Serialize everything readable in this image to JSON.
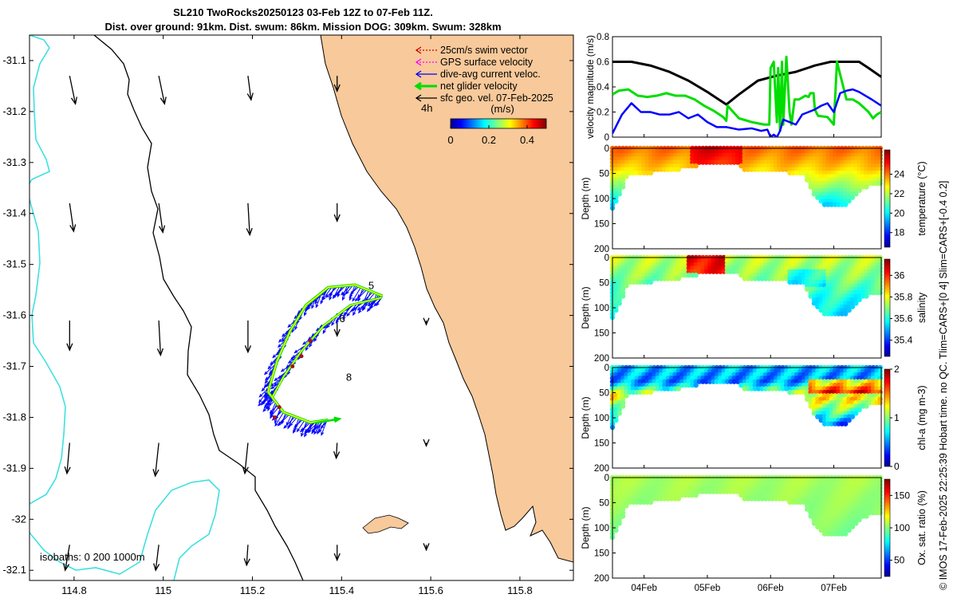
{
  "title_line1": "SL210 TwoRocks20250123 03-Feb 12Z to 07-Feb 11Z.",
  "title_line2": "Dist. over ground: 91km. Dist. swum: 86km. Mission DOG: 309km. Swum: 328km",
  "credit": "© IMOS 17-Feb-2025 22:25:39 Hobart time. no QC. Tlim=CARS+[0 4] Slim=CARS+[-0.4 0.2]",
  "colors": {
    "land": "#f8c99a",
    "coast": "#000000",
    "isobath": "#40e0e0",
    "glider_path": "#ffff00",
    "net": "#00dd00",
    "current": "#0000ff",
    "surface_current": "#000000",
    "swim": "#cc0000",
    "gps": "#ff00ff"
  },
  "map": {
    "xlim": [
      114.7,
      115.92
    ],
    "ylim": [
      -32.12,
      -31.05
    ],
    "lon_ticks": [
      114.8,
      115,
      115.2,
      115.4,
      115.6,
      115.8
    ],
    "lon_tick_labels": [
      "114.8",
      "115",
      "115.2",
      "115.4",
      "115.6",
      "115.8"
    ],
    "lat_ticks": [
      -31.1,
      -31.2,
      -31.3,
      -31.4,
      -31.5,
      -31.6,
      -31.7,
      -31.8,
      -31.9,
      -32,
      -32.1
    ],
    "lat_tick_labels": [
      "-31.1",
      "-31.2",
      "-31.3",
      "-31.4",
      "-31.5",
      "-31.6",
      "-31.7",
      "-31.8",
      "-31.9",
      "-32",
      "-32.1"
    ],
    "legend": [
      {
        "label": "25cm/s swim vector",
        "color": "#cc0000",
        "style": "dashed"
      },
      {
        "label": "GPS surface velocity",
        "color": "#ff00ff",
        "style": "dashed"
      },
      {
        "label": "dive-avg current veloc.",
        "color": "#0000ff",
        "style": "solid"
      },
      {
        "label": "net glider velocity",
        "color": "#00dd00",
        "style": "thick"
      },
      {
        "label": "sfc geo. vel. 07-Feb-2025",
        "color": "#000000",
        "style": "solid"
      }
    ],
    "legend_extra": "4h",
    "colorbar": {
      "title": "(m/s)",
      "ticks": [
        0,
        0.2,
        0.4
      ],
      "tick_labels": [
        "0",
        "0.2",
        "0.4"
      ],
      "range": [
        0,
        0.5
      ]
    },
    "day_labels": [
      {
        "text": "5",
        "lon": 115.46,
        "lat": -31.548
      },
      {
        "text": "6",
        "lon": 115.395,
        "lat": -31.613
      },
      {
        "text": "8",
        "lon": 115.41,
        "lat": -31.728
      }
    ],
    "isobath_label": "isobaths: 0   200  1000m",
    "sfc_vectors": [
      {
        "lon": 114.8,
        "lat": -31.18,
        "u": 0.013,
        "v": -0.055
      },
      {
        "lon": 115.0,
        "lat": -31.18,
        "u": 0.013,
        "v": -0.055
      },
      {
        "lon": 115.2,
        "lat": -31.18,
        "u": 0.007,
        "v": -0.047
      },
      {
        "lon": 115.4,
        "lat": -31.18,
        "u": 0.0,
        "v": -0.03
      },
      {
        "lon": 114.8,
        "lat": -31.43,
        "u": 0.009,
        "v": -0.055
      },
      {
        "lon": 115.0,
        "lat": -31.43,
        "u": 0.009,
        "v": -0.057
      },
      {
        "lon": 115.2,
        "lat": -31.43,
        "u": 0.004,
        "v": -0.062
      },
      {
        "lon": 115.4,
        "lat": -31.43,
        "u": 0.0,
        "v": -0.035
      },
      {
        "lon": 114.8,
        "lat": -31.66,
        "u": 0.0,
        "v": -0.058
      },
      {
        "lon": 115.0,
        "lat": -31.66,
        "u": 0.004,
        "v": -0.068
      },
      {
        "lon": 115.2,
        "lat": -31.66,
        "u": 0.0,
        "v": -0.062
      },
      {
        "lon": 115.4,
        "lat": -31.66,
        "u": 0.0,
        "v": -0.03
      },
      {
        "lon": 115.6,
        "lat": -31.66,
        "u": 0.0,
        "v": -0.008
      },
      {
        "lon": 114.8,
        "lat": -31.9,
        "u": -0.006,
        "v": -0.06
      },
      {
        "lon": 115.0,
        "lat": -31.9,
        "u": -0.008,
        "v": -0.065
      },
      {
        "lon": 115.2,
        "lat": -31.9,
        "u": -0.007,
        "v": -0.06
      },
      {
        "lon": 115.4,
        "lat": -31.9,
        "u": -0.002,
        "v": -0.03
      },
      {
        "lon": 115.6,
        "lat": -31.9,
        "u": 0.0,
        "v": -0.006
      },
      {
        "lon": 114.8,
        "lat": -32.1,
        "u": -0.01,
        "v": -0.05
      },
      {
        "lon": 115.0,
        "lat": -32.1,
        "u": -0.007,
        "v": -0.05
      },
      {
        "lon": 115.2,
        "lat": -32.1,
        "u": -0.003,
        "v": -0.04
      },
      {
        "lon": 115.4,
        "lat": -32.1,
        "u": 0.0,
        "v": -0.03
      },
      {
        "lon": 115.6,
        "lat": -32.1,
        "u": 0.0,
        "v": -0.01
      }
    ],
    "glider_track": [
      [
        115.492,
        -31.562
      ],
      [
        115.43,
        -31.54
      ],
      [
        115.37,
        -31.545
      ],
      [
        115.32,
        -31.58
      ],
      [
        115.285,
        -31.63
      ],
      [
        115.255,
        -31.69
      ],
      [
        115.235,
        -31.75
      ],
      [
        115.27,
        -31.79
      ],
      [
        115.33,
        -31.81
      ],
      [
        115.37,
        -31.805
      ]
    ],
    "glider_track_inner": [
      [
        115.49,
        -31.565
      ],
      [
        115.42,
        -31.58
      ],
      [
        115.36,
        -31.62
      ],
      [
        115.31,
        -31.67
      ],
      [
        115.27,
        -31.72
      ],
      [
        115.245,
        -31.76
      ]
    ]
  },
  "chart_data": [
    {
      "type": "line",
      "title": "velocity magnitude",
      "xlabel": "",
      "ylabel": "velocity magnitude (m/s)",
      "xlim": [
        3.5,
        7.75
      ],
      "ylim": [
        0,
        0.8
      ],
      "yticks": [
        0,
        0.2,
        0.4,
        0.6,
        0.8
      ],
      "ytick_labels": [
        "0",
        "0.2",
        "0.4",
        "0.6",
        "0.8"
      ],
      "xticks": [
        4,
        5,
        6,
        7
      ],
      "xtick_labels": [
        "04Feb",
        "05Feb",
        "06Feb",
        "07Feb"
      ],
      "series": [
        {
          "name": "sfc geo. speed",
          "color": "#000000",
          "width": 3,
          "x": [
            3.5,
            3.8,
            4.1,
            4.4,
            4.7,
            5.0,
            5.3,
            5.5,
            5.8,
            6.1,
            6.4,
            6.7,
            6.95,
            7.2,
            7.4,
            7.55,
            7.75
          ],
          "y": [
            0.6,
            0.6,
            0.57,
            0.52,
            0.45,
            0.36,
            0.26,
            0.34,
            0.45,
            0.49,
            0.52,
            0.57,
            0.6,
            0.6,
            0.6,
            0.55,
            0.48
          ]
        },
        {
          "name": "net glider velocity",
          "color": "#00dd00",
          "width": 3,
          "x": [
            3.5,
            3.6,
            3.75,
            3.9,
            4.05,
            4.2,
            4.35,
            4.5,
            4.65,
            4.8,
            4.95,
            5.1,
            5.25,
            5.3,
            5.32,
            5.5,
            5.7,
            5.9,
            5.98,
            6.0,
            6.05,
            6.1,
            6.12,
            6.15,
            6.18,
            6.2,
            6.25,
            6.3,
            6.33,
            6.38,
            6.45,
            6.55,
            6.6,
            6.63,
            6.68,
            6.7,
            6.75,
            6.9,
            7.0,
            7.05,
            7.1,
            7.2,
            7.3,
            7.4,
            7.55,
            7.62,
            7.68,
            7.75
          ],
          "y": [
            0.34,
            0.37,
            0.38,
            0.33,
            0.32,
            0.33,
            0.35,
            0.33,
            0.33,
            0.3,
            0.25,
            0.21,
            0.16,
            0.13,
            0.25,
            0.15,
            0.12,
            0.1,
            0.1,
            0.55,
            0.6,
            0.12,
            0.55,
            0.05,
            0.6,
            0.1,
            0.64,
            0.2,
            0.1,
            0.3,
            0.3,
            0.33,
            0.32,
            0.35,
            0.35,
            0.22,
            0.17,
            0.16,
            0.1,
            0.6,
            0.5,
            0.3,
            0.3,
            0.27,
            0.2,
            0.15,
            0.18,
            0.2
          ]
        },
        {
          "name": "dive-avg current",
          "color": "#0000ff",
          "width": 2.5,
          "x": [
            3.5,
            3.65,
            3.8,
            3.95,
            4.1,
            4.25,
            4.4,
            4.55,
            4.7,
            4.85,
            5.0,
            5.15,
            5.3,
            5.5,
            5.7,
            5.85,
            5.95,
            6.0,
            6.05,
            6.1,
            6.15,
            6.2,
            6.3,
            6.4,
            6.5,
            6.6,
            6.7,
            6.8,
            6.9,
            7.0,
            7.1,
            7.2,
            7.3,
            7.4,
            7.5,
            7.6,
            7.75
          ],
          "y": [
            0.03,
            0.18,
            0.27,
            0.2,
            0.2,
            0.18,
            0.18,
            0.2,
            0.15,
            0.18,
            0.12,
            0.08,
            0.08,
            0.06,
            0.07,
            0.05,
            0.06,
            0.0,
            0.02,
            0.0,
            0.05,
            0.14,
            0.12,
            0.1,
            0.18,
            0.2,
            0.22,
            0.25,
            0.27,
            0.2,
            0.35,
            0.37,
            0.38,
            0.36,
            0.33,
            0.3,
            0.25
          ]
        }
      ]
    },
    {
      "type": "heatmap",
      "name": "temperature",
      "ylabel": "Depth (m)",
      "cbar_label": "temperature (°C)",
      "ylim": [
        0,
        200
      ],
      "yticks": [
        0,
        50,
        100,
        150,
        200
      ],
      "ytick_labels": [
        "0",
        "50",
        "100",
        "150",
        "200"
      ],
      "clim": [
        16.5,
        26.5
      ],
      "cbar_ticks": [
        18,
        20,
        22,
        24
      ],
      "cbar_tick_labels": [
        "18",
        "20",
        "22",
        "24"
      ],
      "bottom_depth": [
        [
          3.5,
          120
        ],
        [
          3.6,
          95
        ],
        [
          3.75,
          55
        ],
        [
          4.2,
          48
        ],
        [
          4.7,
          40
        ],
        [
          4.85,
          35
        ],
        [
          5.2,
          30
        ],
        [
          5.5,
          32
        ],
        [
          5.6,
          45
        ],
        [
          6.2,
          48
        ],
        [
          6.55,
          55
        ],
        [
          6.7,
          100
        ],
        [
          6.9,
          118
        ],
        [
          7.2,
          115
        ],
        [
          7.35,
          92
        ],
        [
          7.55,
          75
        ],
        [
          7.75,
          70
        ]
      ],
      "profile_values": [
        [
          0,
          24.2
        ],
        [
          40,
          23.2
        ],
        [
          80,
          21.5
        ],
        [
          120,
          19.5
        ]
      ]
    },
    {
      "type": "heatmap",
      "name": "salinity",
      "ylabel": "Depth (m)",
      "cbar_label": "salinity",
      "ylim": [
        0,
        200
      ],
      "yticks": [
        0,
        50,
        100,
        150,
        200
      ],
      "ytick_labels": [
        "0",
        "50",
        "100",
        "150",
        "200"
      ],
      "clim": [
        35.25,
        36.15
      ],
      "cbar_ticks": [
        35.4,
        35.6,
        35.8,
        36
      ],
      "cbar_tick_labels": [
        "35.4",
        "35.6",
        "35.8",
        "36"
      ],
      "profile_values": [
        [
          0,
          35.75
        ],
        [
          40,
          35.7
        ],
        [
          80,
          35.6
        ],
        [
          120,
          35.55
        ]
      ]
    },
    {
      "type": "heatmap",
      "name": "chl-a",
      "ylabel": "Depth (m)",
      "cbar_label": "chl-a (mg m-3)",
      "ylim": [
        0,
        200
      ],
      "yticks": [
        0,
        50,
        100,
        150,
        200
      ],
      "ytick_labels": [
        "0",
        "50",
        "100",
        "150",
        "200"
      ],
      "clim": [
        0,
        2
      ],
      "cbar_ticks": [
        0,
        1,
        2
      ],
      "cbar_tick_labels": [
        "0",
        "1",
        "2"
      ],
      "profile_values": [
        [
          0,
          0.6
        ],
        [
          30,
          0.5
        ],
        [
          60,
          1.3
        ],
        [
          90,
          0.9
        ],
        [
          120,
          0.3
        ]
      ]
    },
    {
      "type": "heatmap",
      "name": "oxygen",
      "ylabel": "Depth (m)",
      "cbar_label": "Ox. sat. ratio (%)",
      "ylim": [
        0,
        200
      ],
      "yticks": [
        0,
        50,
        100,
        150,
        200
      ],
      "ytick_labels": [
        "0",
        "50",
        "100",
        "150",
        "200"
      ],
      "xticks": [
        4,
        5,
        6,
        7
      ],
      "xtick_labels": [
        "04Feb",
        "05Feb",
        "06Feb",
        "07Feb"
      ],
      "clim": [
        25,
        175
      ],
      "cbar_ticks": [
        50,
        100,
        150
      ],
      "cbar_tick_labels": [
        "50",
        "100",
        "150"
      ],
      "profile_values": [
        [
          0,
          105
        ],
        [
          60,
          102
        ],
        [
          120,
          98
        ]
      ]
    }
  ]
}
